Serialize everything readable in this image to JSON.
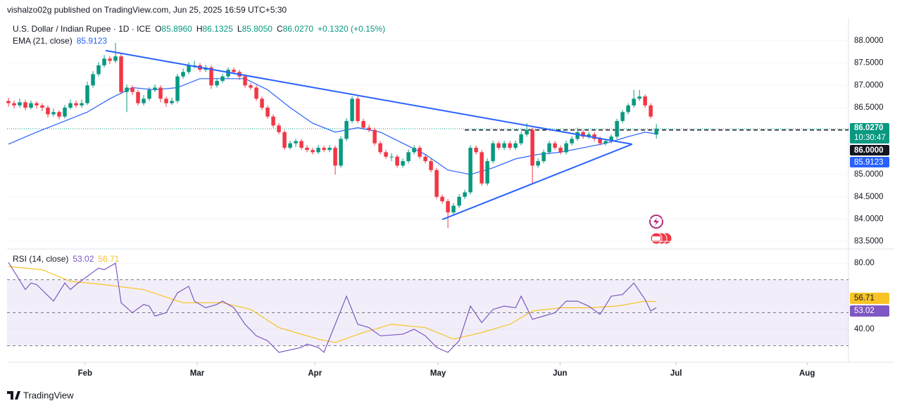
{
  "header": "vishalzo02g published on TradingView.com, Jun 25, 2025 16:59 UTC+5:30",
  "footer": "TradingView",
  "chart_data": [
    {
      "type": "candlestick",
      "symbol": "U.S. Dollar / Indian Rupee · 1D · ICE",
      "ohlc_keys": [
        "O",
        "H",
        "L",
        "C"
      ],
      "last_candle_labels": [
        "85.8960",
        "86.1325",
        "85.8050",
        "86.0270"
      ],
      "change": "+0.1320 (+0.15%)",
      "countdown": "10:30:47",
      "colors": {
        "up": "#089981",
        "down": "#f23645"
      },
      "candles": [
        [
          86.65,
          86.72,
          86.52,
          86.6
        ],
        [
          86.6,
          86.66,
          86.48,
          86.55
        ],
        [
          86.55,
          86.7,
          86.5,
          86.62
        ],
        [
          86.62,
          86.68,
          86.44,
          86.5
        ],
        [
          86.5,
          86.66,
          86.46,
          86.6
        ],
        [
          86.6,
          86.64,
          86.48,
          86.55
        ],
        [
          86.55,
          86.6,
          86.42,
          86.5
        ],
        [
          86.5,
          86.55,
          86.28,
          86.35
        ],
        [
          86.35,
          86.48,
          86.3,
          86.4
        ],
        [
          86.4,
          86.44,
          86.24,
          86.3
        ],
        [
          86.3,
          86.56,
          86.26,
          86.5
        ],
        [
          86.5,
          86.68,
          86.46,
          86.6
        ],
        [
          86.6,
          86.66,
          86.5,
          86.55
        ],
        [
          86.55,
          86.68,
          86.5,
          86.6
        ],
        [
          86.6,
          87.08,
          86.56,
          87.0
        ],
        [
          87.0,
          87.32,
          86.95,
          87.25
        ],
        [
          87.25,
          87.52,
          87.2,
          87.45
        ],
        [
          87.45,
          87.68,
          87.4,
          87.6
        ],
        [
          87.6,
          87.66,
          87.48,
          87.55
        ],
        [
          87.55,
          87.95,
          87.5,
          87.65
        ],
        [
          87.65,
          87.7,
          86.8,
          86.85
        ],
        [
          86.85,
          87.02,
          86.4,
          86.95
        ],
        [
          86.95,
          87.0,
          86.78,
          86.85
        ],
        [
          86.85,
          86.9,
          86.55,
          86.6
        ],
        [
          86.6,
          86.78,
          86.55,
          86.7
        ],
        [
          86.7,
          86.96,
          86.65,
          86.9
        ],
        [
          86.9,
          87.02,
          86.85,
          86.95
        ],
        [
          86.95,
          87.0,
          86.62,
          86.7
        ],
        [
          86.7,
          86.75,
          86.52,
          86.6
        ],
        [
          86.6,
          86.72,
          86.56,
          86.65
        ],
        [
          86.65,
          87.26,
          86.6,
          87.2
        ],
        [
          87.2,
          87.38,
          87.15,
          87.3
        ],
        [
          87.3,
          87.52,
          87.25,
          87.45
        ],
        [
          87.45,
          87.55,
          87.38,
          87.45
        ],
        [
          87.45,
          87.5,
          87.3,
          87.35
        ],
        [
          87.35,
          87.46,
          87.3,
          87.4
        ],
        [
          87.4,
          87.45,
          86.92,
          87.0
        ],
        [
          87.0,
          87.16,
          86.95,
          87.1
        ],
        [
          87.1,
          87.26,
          87.05,
          87.2
        ],
        [
          87.2,
          87.4,
          87.15,
          87.35
        ],
        [
          87.35,
          87.4,
          87.25,
          87.3
        ],
        [
          87.3,
          87.35,
          87.12,
          87.2
        ],
        [
          87.2,
          87.25,
          86.95,
          87.0
        ],
        [
          87.0,
          87.05,
          86.9,
          86.95
        ],
        [
          86.95,
          87.0,
          86.65,
          86.7
        ],
        [
          86.7,
          86.75,
          86.45,
          86.5
        ],
        [
          86.5,
          86.55,
          86.25,
          86.3
        ],
        [
          86.3,
          86.35,
          86.05,
          86.1
        ],
        [
          86.1,
          86.15,
          85.9,
          85.95
        ],
        [
          85.95,
          86.0,
          85.55,
          85.6
        ],
        [
          85.6,
          85.76,
          85.56,
          85.7
        ],
        [
          85.7,
          85.8,
          85.62,
          85.75
        ],
        [
          85.75,
          85.8,
          85.55,
          85.6
        ],
        [
          85.6,
          85.66,
          85.5,
          85.55
        ],
        [
          85.55,
          85.6,
          85.45,
          85.5
        ],
        [
          85.5,
          85.66,
          85.46,
          85.6
        ],
        [
          85.6,
          85.65,
          85.5,
          85.55
        ],
        [
          85.55,
          85.66,
          85.5,
          85.6
        ],
        [
          85.6,
          85.65,
          85.0,
          85.2
        ],
        [
          85.2,
          85.86,
          85.15,
          85.8
        ],
        [
          85.8,
          86.26,
          85.75,
          86.2
        ],
        [
          86.2,
          86.75,
          86.15,
          86.7
        ],
        [
          86.7,
          86.75,
          86.15,
          86.2
        ],
        [
          86.2,
          86.25,
          86.0,
          86.05
        ],
        [
          86.05,
          86.12,
          85.95,
          86.0
        ],
        [
          86.0,
          86.05,
          85.65,
          85.7
        ],
        [
          85.7,
          85.75,
          85.45,
          85.5
        ],
        [
          85.5,
          85.55,
          85.35,
          85.4
        ],
        [
          85.4,
          85.48,
          85.3,
          85.4
        ],
        [
          85.4,
          85.45,
          85.15,
          85.2
        ],
        [
          85.2,
          85.36,
          85.15,
          85.3
        ],
        [
          85.3,
          85.56,
          85.25,
          85.5
        ],
        [
          85.5,
          85.66,
          85.45,
          85.6
        ],
        [
          85.6,
          85.65,
          85.35,
          85.4
        ],
        [
          85.4,
          85.45,
          85.25,
          85.3
        ],
        [
          85.3,
          85.35,
          85.05,
          85.1
        ],
        [
          85.1,
          85.15,
          84.45,
          84.5
        ],
        [
          84.5,
          84.55,
          84.35,
          84.4
        ],
        [
          84.4,
          84.45,
          83.8,
          84.15
        ],
        [
          84.15,
          84.36,
          84.1,
          84.3
        ],
        [
          84.3,
          84.56,
          84.25,
          84.5
        ],
        [
          84.5,
          84.66,
          84.45,
          84.6
        ],
        [
          84.6,
          85.66,
          84.55,
          85.6
        ],
        [
          85.6,
          85.65,
          85.45,
          85.5
        ],
        [
          85.5,
          85.55,
          84.75,
          84.8
        ],
        [
          84.8,
          85.36,
          84.75,
          85.3
        ],
        [
          85.3,
          85.76,
          85.25,
          85.7
        ],
        [
          85.7,
          85.75,
          85.55,
          85.6
        ],
        [
          85.6,
          85.76,
          85.55,
          85.7
        ],
        [
          85.7,
          85.75,
          85.55,
          85.6
        ],
        [
          85.6,
          85.76,
          85.55,
          85.7
        ],
        [
          85.7,
          85.96,
          85.65,
          85.9
        ],
        [
          85.9,
          86.15,
          85.85,
          86.0
        ],
        [
          86.0,
          86.05,
          84.8,
          85.2
        ],
        [
          85.2,
          85.36,
          85.15,
          85.3
        ],
        [
          85.3,
          85.56,
          85.25,
          85.5
        ],
        [
          85.5,
          85.76,
          85.45,
          85.7
        ],
        [
          85.7,
          85.75,
          85.55,
          85.6
        ],
        [
          85.6,
          85.65,
          85.45,
          85.5
        ],
        [
          85.5,
          85.76,
          85.45,
          85.7
        ],
        [
          85.7,
          85.86,
          85.65,
          85.8
        ],
        [
          85.8,
          86.05,
          85.75,
          85.95
        ],
        [
          85.95,
          86.0,
          85.8,
          85.85
        ],
        [
          85.85,
          85.96,
          85.8,
          85.9
        ],
        [
          85.9,
          85.95,
          85.75,
          85.8
        ],
        [
          85.8,
          85.85,
          85.65,
          85.7
        ],
        [
          85.7,
          85.8,
          85.65,
          85.75
        ],
        [
          85.75,
          85.9,
          85.7,
          85.85
        ],
        [
          85.85,
          86.25,
          85.8,
          86.2
        ],
        [
          86.2,
          86.45,
          86.15,
          86.4
        ],
        [
          86.4,
          86.6,
          86.35,
          86.55
        ],
        [
          86.55,
          86.9,
          86.5,
          86.7
        ],
        [
          86.7,
          86.9,
          86.65,
          86.75
        ],
        [
          86.75,
          86.8,
          86.5,
          86.55
        ],
        [
          86.55,
          86.6,
          86.25,
          86.3
        ],
        [
          85.896,
          86.1325,
          85.805,
          86.027
        ]
      ],
      "series": [
        {
          "name": "EMA (21, close)",
          "color": "#2962ff",
          "x": [
            0,
            5,
            10,
            14,
            18,
            22,
            26,
            30,
            34,
            38,
            42,
            46,
            50,
            54,
            58,
            62,
            66,
            70,
            74,
            78,
            82,
            86,
            90,
            94,
            98,
            102,
            106,
            110,
            113,
            115
          ],
          "values": [
            85.68,
            85.95,
            86.2,
            86.4,
            86.7,
            86.95,
            86.9,
            86.95,
            87.15,
            87.15,
            87.15,
            86.9,
            86.5,
            86.15,
            85.95,
            86.05,
            85.95,
            85.7,
            85.45,
            85.1,
            85.0,
            85.15,
            85.35,
            85.45,
            85.5,
            85.6,
            85.7,
            85.85,
            85.95,
            85.9123
          ]
        }
      ],
      "hline": {
        "value": 86,
        "label": "86.0000",
        "x_start": 81
      },
      "trendlines": [
        {
          "color": "#2962ff",
          "x": [
            17.25,
            110.7
          ],
          "values": [
            87.78,
            85.68
          ]
        },
        {
          "color": "#2962ff",
          "x": [
            77,
            110.7
          ],
          "values": [
            83.99,
            85.68
          ]
        }
      ],
      "xlim": [
        -0.25,
        149.1
      ],
      "xticks": [
        {
          "value": 13.6,
          "label": "Feb"
        },
        {
          "value": 33.5,
          "label": "Mar"
        },
        {
          "value": 54.4,
          "label": "Apr"
        },
        {
          "value": 76.25,
          "label": "May"
        },
        {
          "value": 97.9,
          "label": "Jun"
        },
        {
          "value": 118.5,
          "label": "Jul"
        },
        {
          "value": 141.75,
          "label": "Aug"
        }
      ],
      "ylim": [
        83.36,
        88.52
      ],
      "yticks": [
        {
          "value": 88,
          "label": "88.0000"
        },
        {
          "value": 87.5,
          "label": "87.5000"
        },
        {
          "value": 87,
          "label": "87.0000"
        },
        {
          "value": 86.5,
          "label": "86.5000"
        },
        {
          "value": 85,
          "label": "85.0000"
        },
        {
          "value": 84.5,
          "label": "84.5000"
        },
        {
          "value": 84,
          "label": "84.0000"
        },
        {
          "value": 83.5,
          "label": "83.5000"
        }
      ]
    },
    {
      "type": "line",
      "series": [
        {
          "name": "RSI (14, close)",
          "color": "#7e57c2",
          "x": [
            0,
            1,
            3,
            4,
            5,
            8,
            10,
            11,
            12,
            14,
            16,
            17,
            19,
            20,
            22,
            24,
            25,
            26,
            28,
            30,
            32,
            33,
            35,
            37,
            38,
            40,
            42,
            44,
            46,
            48,
            52,
            53,
            55,
            56,
            58,
            60,
            62,
            64,
            66,
            70,
            72,
            74,
            76,
            78,
            80,
            82,
            84,
            86,
            88,
            90,
            91,
            93,
            95,
            97,
            99,
            101,
            103,
            105,
            107,
            109,
            111,
            113,
            114,
            115
          ],
          "values": [
            80.5,
            75,
            64,
            68,
            67,
            57,
            68,
            64,
            67,
            72,
            77,
            76,
            80,
            56,
            50,
            55,
            54,
            48,
            50,
            62,
            66,
            57,
            53,
            55,
            57,
            53,
            43,
            36,
            33,
            26,
            29,
            31,
            29,
            26,
            43,
            60,
            43,
            41,
            36,
            37,
            40,
            36,
            29,
            26,
            33,
            54,
            44,
            52,
            54,
            53,
            60,
            46,
            48,
            50,
            57,
            57,
            54,
            49,
            60,
            61,
            68,
            58,
            51,
            53.02
          ]
        },
        {
          "color": "#f7c325",
          "x": [
            0,
            6,
            11,
            17,
            24,
            31,
            38,
            43,
            48,
            55,
            58,
            63,
            68,
            74,
            79,
            84,
            89,
            93,
            98,
            103,
            108,
            113,
            115
          ],
          "values": [
            78,
            76,
            69,
            67,
            64,
            56,
            56,
            52,
            41,
            34,
            32,
            38,
            43,
            41,
            34,
            38,
            43,
            51,
            53,
            53,
            54,
            57,
            56.71
          ]
        }
      ],
      "bands": {
        "upper": 70,
        "middle": 50,
        "lower": 30,
        "fill": "#7e57c2"
      },
      "ylim": [
        20,
        87.7
      ],
      "yticks": [
        {
          "value": 80,
          "label": "80.00"
        },
        {
          "value": 40,
          "label": "40.00"
        }
      ]
    }
  ]
}
